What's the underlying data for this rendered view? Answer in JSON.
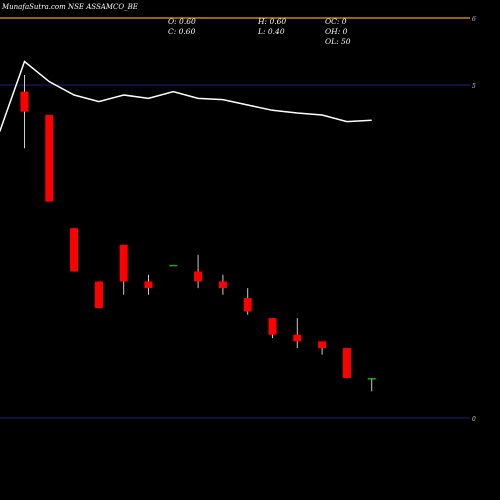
{
  "chart_data": {
    "type": "candlestick",
    "title": "MunafaSutra.com NSE ASSAMCO_BE",
    "ohlc_info": {
      "open": "O: 0.60",
      "high": "H: 0.60",
      "oc": "OC: 0",
      "close": "C: 0.60",
      "low": "L: 0.40",
      "oh": "OH: 0",
      "ol": "OL: 50"
    },
    "y_ticks": [
      "6",
      "5",
      "0"
    ],
    "ylim": [
      0,
      6
    ],
    "reference_lines": [
      6,
      5,
      0
    ],
    "background_color": "#000000",
    "up_color": "#22aa22",
    "down_color": "#ff0000",
    "line_color": "#ffffff",
    "candles": [
      {
        "o": 4.9,
        "h": 5.15,
        "l": 4.05,
        "c": 4.6
      },
      {
        "o": 4.55,
        "h": 4.55,
        "l": 3.25,
        "c": 3.25
      },
      {
        "o": 2.85,
        "h": 2.85,
        "l": 2.2,
        "c": 2.2
      },
      {
        "o": 2.05,
        "h": 2.05,
        "l": 1.65,
        "c": 1.65
      },
      {
        "o": 2.6,
        "h": 2.6,
        "l": 1.85,
        "c": 2.05
      },
      {
        "o": 2.05,
        "h": 2.15,
        "l": 1.85,
        "c": 1.95
      },
      {
        "o": 2.3,
        "h": 2.3,
        "l": 2.3,
        "c": 2.3
      },
      {
        "o": 2.2,
        "h": 2.45,
        "l": 1.95,
        "c": 2.05
      },
      {
        "o": 2.05,
        "h": 2.15,
        "l": 1.85,
        "c": 1.95
      },
      {
        "o": 1.8,
        "h": 1.95,
        "l": 1.55,
        "c": 1.6
      },
      {
        "o": 1.5,
        "h": 1.5,
        "l": 1.2,
        "c": 1.25
      },
      {
        "o": 1.25,
        "h": 1.5,
        "l": 1.05,
        "c": 1.15
      },
      {
        "o": 1.15,
        "h": 1.15,
        "l": 0.95,
        "c": 1.05
      },
      {
        "o": 1.05,
        "h": 1.05,
        "l": 0.6,
        "c": 0.6
      },
      {
        "o": 0.6,
        "h": 0.6,
        "l": 0.4,
        "c": 0.6
      }
    ],
    "line_values": [
      4.3,
      5.35,
      5.05,
      4.85,
      4.75,
      4.85,
      4.8,
      4.9,
      4.8,
      4.78,
      4.7,
      4.62,
      4.58,
      4.55,
      4.45,
      4.47
    ]
  }
}
